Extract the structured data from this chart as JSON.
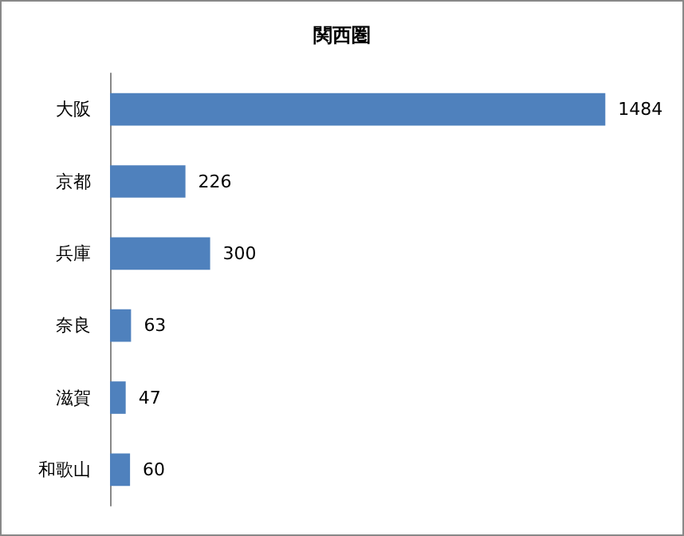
{
  "chart_data": {
    "type": "bar",
    "orientation": "horizontal",
    "title": "関西圏",
    "categories": [
      "大阪",
      "京都",
      "兵庫",
      "奈良",
      "滋賀",
      "和歌山"
    ],
    "values": [
      1484,
      226,
      300,
      63,
      47,
      60
    ],
    "color": "#4f81bd",
    "data_labels": true
  }
}
